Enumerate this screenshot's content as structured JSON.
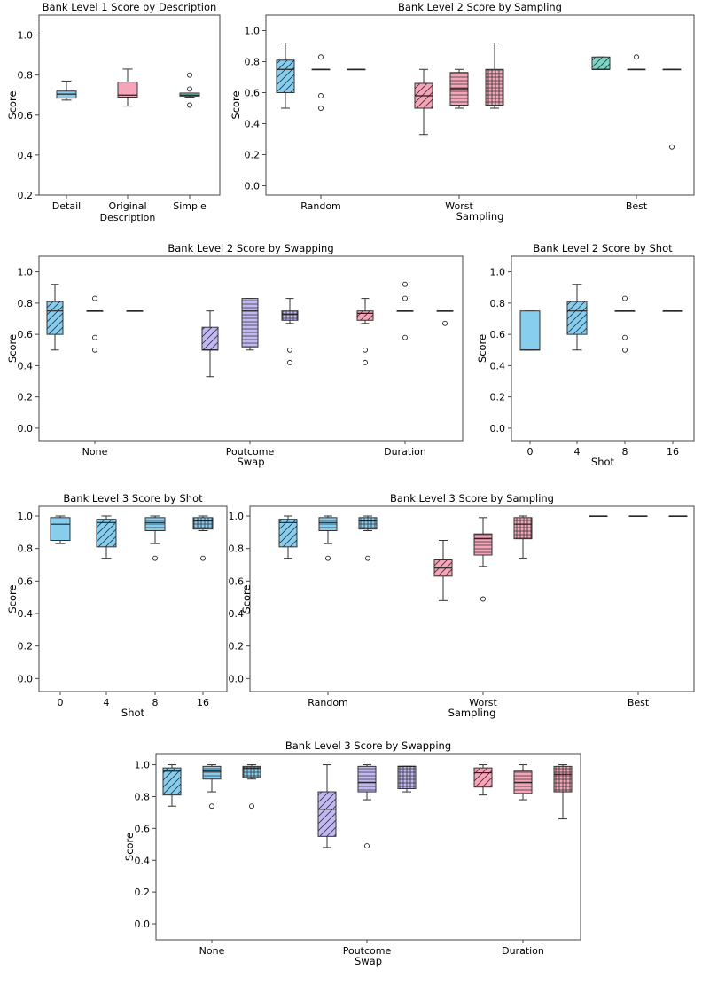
{
  "colors": {
    "blue": "#87cdee",
    "pink": "#f4a5b7",
    "purple": "#c3b9f2",
    "teal": "#7dd3c5",
    "edge": "#333333",
    "axis": "#444444"
  },
  "chart_data": [
    {
      "type": "box",
      "title": "Bank Level 1 Score by Description",
      "xlabel": "",
      "ylabel": "Score",
      "ylim": [
        0.2,
        1.1
      ],
      "yticks": [
        "0.2",
        "0.4",
        "0.6",
        "0.8",
        "1.0"
      ],
      "categories": [
        "Detail",
        "Original Description",
        "Simple"
      ],
      "category_label_lines": [
        [
          "Detail"
        ],
        [
          "Original",
          "Description"
        ],
        [
          "Simple"
        ]
      ],
      "boxes": [
        {
          "group": 0,
          "offset": 0,
          "color": "blue",
          "hatch": "",
          "whislo": 0.675,
          "q1": 0.685,
          "med": 0.705,
          "q3": 0.72,
          "whishi": 0.77,
          "fliers": []
        },
        {
          "group": 1,
          "offset": 0,
          "color": "pink",
          "hatch": "",
          "whislo": 0.645,
          "q1": 0.69,
          "med": 0.7,
          "q3": 0.765,
          "whishi": 0.83,
          "fliers": []
        },
        {
          "group": 2,
          "offset": 0,
          "color": "teal",
          "hatch": "",
          "whislo": 0.69,
          "q1": 0.695,
          "med": 0.7,
          "q3": 0.71,
          "whishi": 0.71,
          "fliers": [
            0.65,
            0.73,
            0.8
          ]
        }
      ]
    },
    {
      "type": "box",
      "title": "Bank Level 2 Score by Sampling",
      "xlabel": "Sampling",
      "ylabel": "Score",
      "ylim": [
        -0.06,
        1.1
      ],
      "yticks": [
        "0.0",
        "0.2",
        "0.4",
        "0.6",
        "0.8",
        "1.0"
      ],
      "categories": [
        "Random",
        "Worst",
        "Best"
      ],
      "category_label_lines": [
        [
          "Random"
        ],
        [
          "Worst"
        ],
        [
          "Best"
        ]
      ],
      "boxes": [
        {
          "group": 0,
          "offset": -1,
          "color": "blue",
          "hatch": "diag",
          "whislo": 0.5,
          "q1": 0.6,
          "med": 0.75,
          "q3": 0.81,
          "whishi": 0.92,
          "fliers": []
        },
        {
          "group": 0,
          "offset": 0,
          "color": "blue",
          "hatch": "horiz",
          "whislo": 0.75,
          "q1": 0.75,
          "med": 0.75,
          "q3": 0.75,
          "whishi": 0.75,
          "fliers": [
            0.5,
            0.58,
            0.83
          ]
        },
        {
          "group": 0,
          "offset": 1,
          "color": "blue",
          "hatch": "grid",
          "whislo": 0.75,
          "q1": 0.75,
          "med": 0.75,
          "q3": 0.75,
          "whishi": 0.75,
          "fliers": []
        },
        {
          "group": 1,
          "offset": -1,
          "color": "pink",
          "hatch": "diag",
          "whislo": 0.33,
          "q1": 0.5,
          "med": 0.58,
          "q3": 0.66,
          "whishi": 0.75,
          "fliers": []
        },
        {
          "group": 1,
          "offset": 0,
          "color": "pink",
          "hatch": "horiz",
          "whislo": 0.5,
          "q1": 0.52,
          "med": 0.625,
          "q3": 0.73,
          "whishi": 0.75,
          "fliers": []
        },
        {
          "group": 1,
          "offset": 1,
          "color": "pink",
          "hatch": "grid",
          "whislo": 0.5,
          "q1": 0.52,
          "med": 0.72,
          "q3": 0.75,
          "whishi": 0.92,
          "fliers": []
        },
        {
          "group": 2,
          "offset": -1,
          "color": "teal",
          "hatch": "diag",
          "whislo": 0.75,
          "q1": 0.75,
          "med": 0.75,
          "q3": 0.83,
          "whishi": 0.83,
          "fliers": []
        },
        {
          "group": 2,
          "offset": 0,
          "color": "teal",
          "hatch": "horiz",
          "whislo": 0.75,
          "q1": 0.75,
          "med": 0.75,
          "q3": 0.75,
          "whishi": 0.75,
          "fliers": [
            0.83
          ]
        },
        {
          "group": 2,
          "offset": 1,
          "color": "teal",
          "hatch": "grid",
          "whislo": 0.75,
          "q1": 0.75,
          "med": 0.75,
          "q3": 0.75,
          "whishi": 0.75,
          "fliers": [
            0.25
          ]
        }
      ]
    },
    {
      "type": "box",
      "title": "Bank Level 2 Score by Swapping",
      "xlabel": "Swap",
      "ylabel": "Score",
      "ylim": [
        -0.08,
        1.1
      ],
      "yticks": [
        "0.0",
        "0.2",
        "0.4",
        "0.6",
        "0.8",
        "1.0"
      ],
      "categories": [
        "None",
        "Poutcome",
        "Duration"
      ],
      "category_label_lines": [
        [
          "None"
        ],
        [
          "Poutcome"
        ],
        [
          "Duration"
        ]
      ],
      "boxes": [
        {
          "group": 0,
          "offset": -1,
          "color": "blue",
          "hatch": "diag",
          "whislo": 0.5,
          "q1": 0.6,
          "med": 0.75,
          "q3": 0.81,
          "whishi": 0.92,
          "fliers": []
        },
        {
          "group": 0,
          "offset": 0,
          "color": "blue",
          "hatch": "horiz",
          "whislo": 0.75,
          "q1": 0.75,
          "med": 0.75,
          "q3": 0.75,
          "whishi": 0.75,
          "fliers": [
            0.5,
            0.58,
            0.83
          ]
        },
        {
          "group": 0,
          "offset": 1,
          "color": "blue",
          "hatch": "grid",
          "whislo": 0.75,
          "q1": 0.75,
          "med": 0.75,
          "q3": 0.75,
          "whishi": 0.75,
          "fliers": []
        },
        {
          "group": 1,
          "offset": -1,
          "color": "purple",
          "hatch": "diag",
          "whislo": 0.33,
          "q1": 0.5,
          "med": 0.5,
          "q3": 0.645,
          "whishi": 0.75,
          "fliers": []
        },
        {
          "group": 1,
          "offset": 0,
          "color": "purple",
          "hatch": "horiz",
          "whislo": 0.5,
          "q1": 0.52,
          "med": 0.75,
          "q3": 0.83,
          "whishi": 0.83,
          "fliers": []
        },
        {
          "group": 1,
          "offset": 1,
          "color": "purple",
          "hatch": "grid",
          "whislo": 0.67,
          "q1": 0.69,
          "med": 0.73,
          "q3": 0.75,
          "whishi": 0.83,
          "fliers": [
            0.42,
            0.5
          ]
        },
        {
          "group": 2,
          "offset": -1,
          "color": "pink",
          "hatch": "diag",
          "whislo": 0.67,
          "q1": 0.69,
          "med": 0.735,
          "q3": 0.75,
          "whishi": 0.83,
          "fliers": [
            0.42,
            0.5
          ]
        },
        {
          "group": 2,
          "offset": 0,
          "color": "pink",
          "hatch": "horiz",
          "whislo": 0.75,
          "q1": 0.75,
          "med": 0.75,
          "q3": 0.75,
          "whishi": 0.75,
          "fliers": [
            0.58,
            0.83,
            0.92
          ]
        },
        {
          "group": 2,
          "offset": 1,
          "color": "pink",
          "hatch": "grid",
          "whislo": 0.75,
          "q1": 0.75,
          "med": 0.75,
          "q3": 0.75,
          "whishi": 0.75,
          "fliers": [
            0.67
          ]
        }
      ]
    },
    {
      "type": "box",
      "title": "Bank Level 2 Score by Shot",
      "xlabel": "Shot",
      "ylabel": "Score",
      "ylim": [
        -0.08,
        1.1
      ],
      "yticks": [
        "0.0",
        "0.2",
        "0.4",
        "0.6",
        "0.8",
        "1.0"
      ],
      "categories": [
        "0",
        "4",
        "8",
        "16"
      ],
      "category_label_lines": [
        [
          "0"
        ],
        [
          "4"
        ],
        [
          "8"
        ],
        [
          "16"
        ]
      ],
      "boxes": [
        {
          "group": 0,
          "offset": 0,
          "color": "blue",
          "hatch": "",
          "whislo": 0.5,
          "q1": 0.5,
          "med": 0.5,
          "q3": 0.75,
          "whishi": 0.75,
          "fliers": []
        },
        {
          "group": 1,
          "offset": 0,
          "color": "blue",
          "hatch": "diag",
          "whislo": 0.5,
          "q1": 0.6,
          "med": 0.75,
          "q3": 0.81,
          "whishi": 0.92,
          "fliers": []
        },
        {
          "group": 2,
          "offset": 0,
          "color": "blue",
          "hatch": "horiz",
          "whislo": 0.75,
          "q1": 0.75,
          "med": 0.75,
          "q3": 0.75,
          "whishi": 0.75,
          "fliers": [
            0.5,
            0.58,
            0.83
          ]
        },
        {
          "group": 3,
          "offset": 0,
          "color": "blue",
          "hatch": "grid",
          "whislo": 0.75,
          "q1": 0.75,
          "med": 0.75,
          "q3": 0.75,
          "whishi": 0.75,
          "fliers": []
        }
      ]
    },
    {
      "type": "box",
      "title": "Bank Level 3 Score by Shot",
      "xlabel": "Shot",
      "ylabel": "Score",
      "ylim": [
        -0.08,
        1.06
      ],
      "yticks": [
        "0.0",
        "0.2",
        "0.4",
        "0.6",
        "0.8",
        "1.0"
      ],
      "categories": [
        "0",
        "4",
        "8",
        "16"
      ],
      "category_label_lines": [
        [
          "0"
        ],
        [
          "4"
        ],
        [
          "8"
        ],
        [
          "16"
        ]
      ],
      "boxes": [
        {
          "group": 0,
          "offset": 0,
          "color": "blue",
          "hatch": "",
          "whislo": 0.83,
          "q1": 0.85,
          "med": 0.95,
          "q3": 0.99,
          "whishi": 1.0,
          "fliers": []
        },
        {
          "group": 1,
          "offset": 0,
          "color": "blue",
          "hatch": "diag",
          "whislo": 0.74,
          "q1": 0.81,
          "med": 0.96,
          "q3": 0.98,
          "whishi": 1.0,
          "fliers": []
        },
        {
          "group": 2,
          "offset": 0,
          "color": "blue",
          "hatch": "horiz",
          "whislo": 0.83,
          "q1": 0.91,
          "med": 0.96,
          "q3": 0.99,
          "whishi": 1.0,
          "fliers": [
            0.74
          ]
        },
        {
          "group": 3,
          "offset": 0,
          "color": "blue",
          "hatch": "grid",
          "whislo": 0.91,
          "q1": 0.92,
          "med": 0.97,
          "q3": 0.99,
          "whishi": 1.0,
          "fliers": [
            0.74
          ]
        }
      ]
    },
    {
      "type": "box",
      "title": "Bank Level 3 Score by Sampling",
      "xlabel": "Sampling",
      "ylabel": "Score",
      "ylim": [
        -0.08,
        1.06
      ],
      "yticks": [
        "0.0",
        "0.2",
        "0.4",
        "0.6",
        "0.8",
        "1.0"
      ],
      "categories": [
        "Random",
        "Worst",
        "Best"
      ],
      "category_label_lines": [
        [
          "Random"
        ],
        [
          "Worst"
        ],
        [
          "Best"
        ]
      ],
      "boxes": [
        {
          "group": 0,
          "offset": -1,
          "color": "blue",
          "hatch": "diag",
          "whislo": 0.74,
          "q1": 0.81,
          "med": 0.96,
          "q3": 0.98,
          "whishi": 1.0,
          "fliers": []
        },
        {
          "group": 0,
          "offset": 0,
          "color": "blue",
          "hatch": "horiz",
          "whislo": 0.83,
          "q1": 0.91,
          "med": 0.96,
          "q3": 0.99,
          "whishi": 1.0,
          "fliers": [
            0.74
          ]
        },
        {
          "group": 0,
          "offset": 1,
          "color": "blue",
          "hatch": "grid",
          "whislo": 0.91,
          "q1": 0.92,
          "med": 0.97,
          "q3": 0.99,
          "whishi": 1.0,
          "fliers": [
            0.74
          ]
        },
        {
          "group": 1,
          "offset": -1,
          "color": "pink",
          "hatch": "diag",
          "whislo": 0.48,
          "q1": 0.63,
          "med": 0.68,
          "q3": 0.73,
          "whishi": 0.85,
          "fliers": []
        },
        {
          "group": 1,
          "offset": 0,
          "color": "pink",
          "hatch": "horiz",
          "whislo": 0.69,
          "q1": 0.76,
          "med": 0.86,
          "q3": 0.89,
          "whishi": 0.99,
          "fliers": [
            0.49
          ]
        },
        {
          "group": 1,
          "offset": 1,
          "color": "pink",
          "hatch": "grid",
          "whislo": 0.74,
          "q1": 0.86,
          "med": 0.95,
          "q3": 0.99,
          "whishi": 1.0,
          "fliers": []
        },
        {
          "group": 2,
          "offset": -1,
          "color": "teal",
          "hatch": "diag",
          "whislo": 1.0,
          "q1": 1.0,
          "med": 1.0,
          "q3": 1.0,
          "whishi": 1.0,
          "fliers": []
        },
        {
          "group": 2,
          "offset": 0,
          "color": "teal",
          "hatch": "horiz",
          "whislo": 1.0,
          "q1": 1.0,
          "med": 1.0,
          "q3": 1.0,
          "whishi": 1.0,
          "fliers": []
        },
        {
          "group": 2,
          "offset": 1,
          "color": "teal",
          "hatch": "grid",
          "whislo": 1.0,
          "q1": 1.0,
          "med": 1.0,
          "q3": 1.0,
          "whishi": 1.0,
          "fliers": []
        }
      ]
    },
    {
      "type": "box",
      "title": "Bank Level 3 Score by Swapping",
      "xlabel": "Swap",
      "ylabel": "Score",
      "ylim": [
        -0.1,
        1.07
      ],
      "yticks": [
        "0.0",
        "0.2",
        "0.4",
        "0.6",
        "0.8",
        "1.0"
      ],
      "categories": [
        "None",
        "Poutcome",
        "Duration"
      ],
      "category_label_lines": [
        [
          "None"
        ],
        [
          "Poutcome"
        ],
        [
          "Duration"
        ]
      ],
      "boxes": [
        {
          "group": 0,
          "offset": -1,
          "color": "blue",
          "hatch": "diag",
          "whislo": 0.74,
          "q1": 0.81,
          "med": 0.96,
          "q3": 0.98,
          "whishi": 1.0,
          "fliers": []
        },
        {
          "group": 0,
          "offset": 0,
          "color": "blue",
          "hatch": "horiz",
          "whislo": 0.83,
          "q1": 0.91,
          "med": 0.96,
          "q3": 0.99,
          "whishi": 1.0,
          "fliers": [
            0.74
          ]
        },
        {
          "group": 0,
          "offset": 1,
          "color": "blue",
          "hatch": "grid",
          "whislo": 0.91,
          "q1": 0.92,
          "med": 0.98,
          "q3": 0.99,
          "whishi": 1.0,
          "fliers": [
            0.74
          ]
        },
        {
          "group": 1,
          "offset": -1,
          "color": "purple",
          "hatch": "diag",
          "whislo": 0.48,
          "q1": 0.55,
          "med": 0.72,
          "q3": 0.83,
          "whishi": 1.0,
          "fliers": []
        },
        {
          "group": 1,
          "offset": 0,
          "color": "purple",
          "hatch": "horiz",
          "whislo": 0.78,
          "q1": 0.83,
          "med": 0.89,
          "q3": 0.99,
          "whishi": 1.0,
          "fliers": [
            0.49
          ]
        },
        {
          "group": 1,
          "offset": 1,
          "color": "purple",
          "hatch": "grid",
          "whislo": 0.83,
          "q1": 0.85,
          "med": 0.99,
          "q3": 0.99,
          "whishi": 0.99,
          "fliers": []
        },
        {
          "group": 2,
          "offset": -1,
          "color": "pink",
          "hatch": "diag",
          "whislo": 0.81,
          "q1": 0.86,
          "med": 0.95,
          "q3": 0.98,
          "whishi": 1.0,
          "fliers": []
        },
        {
          "group": 2,
          "offset": 0,
          "color": "pink",
          "hatch": "horiz",
          "whislo": 0.78,
          "q1": 0.82,
          "med": 0.89,
          "q3": 0.96,
          "whishi": 1.0,
          "fliers": []
        },
        {
          "group": 2,
          "offset": 1,
          "color": "pink",
          "hatch": "grid",
          "whislo": 0.66,
          "q1": 0.83,
          "med": 0.94,
          "q3": 0.99,
          "whishi": 1.0,
          "fliers": []
        }
      ]
    }
  ]
}
